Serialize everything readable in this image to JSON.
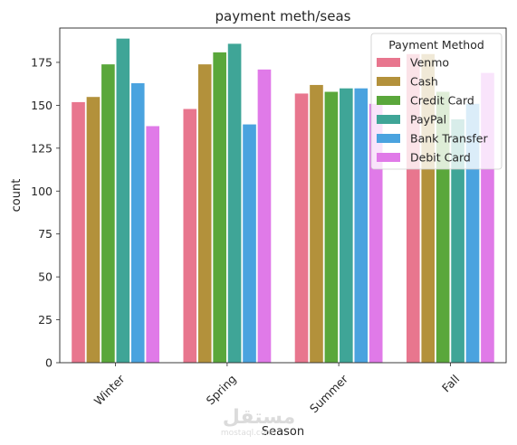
{
  "chart_data": {
    "type": "bar",
    "title": "payment meth/seas",
    "xlabel": "Season",
    "ylabel": "count",
    "categories": [
      "Winter",
      "Spring",
      "Summer",
      "Fall"
    ],
    "ylim": [
      0,
      195
    ],
    "yticks": [
      0,
      25,
      50,
      75,
      100,
      125,
      150,
      175
    ],
    "grid": false,
    "legend": {
      "title": "Payment Method",
      "placement": "top-right"
    },
    "series": [
      {
        "name": "Venmo",
        "color": "#e8768e",
        "values": [
          152,
          148,
          157,
          180
        ]
      },
      {
        "name": "Cash",
        "color": "#b3913b",
        "values": [
          155,
          174,
          162,
          180
        ]
      },
      {
        "name": "Credit Card",
        "color": "#5aa73b",
        "values": [
          174,
          181,
          158,
          158
        ]
      },
      {
        "name": "PayPal",
        "color": "#3fa597",
        "values": [
          189,
          186,
          160,
          142
        ]
      },
      {
        "name": "Bank Transfer",
        "color": "#4aa3df",
        "values": [
          163,
          139,
          160,
          151
        ]
      },
      {
        "name": "Debit Card",
        "color": "#e07ae8",
        "values": [
          138,
          171,
          151,
          169
        ]
      }
    ]
  },
  "watermark": {
    "brand": "مستقل",
    "sub": "mostaql.com"
  }
}
